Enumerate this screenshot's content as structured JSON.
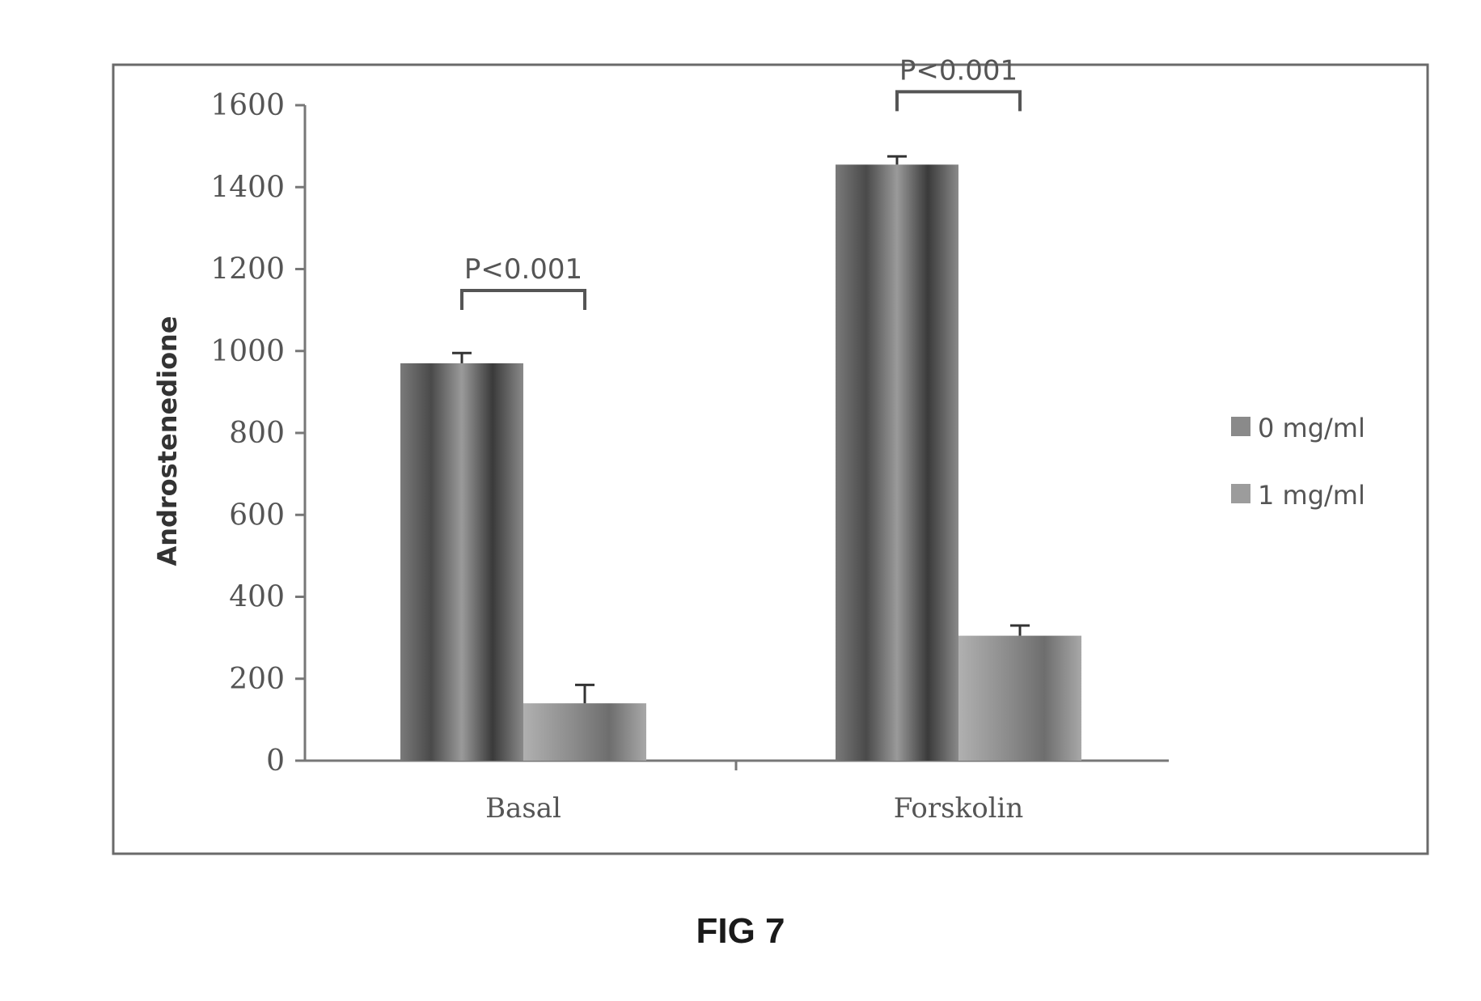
{
  "caption": "FIG 7",
  "chart_data": {
    "type": "bar",
    "title": "",
    "xlabel": "",
    "ylabel": "Androstenedione",
    "ylim": [
      0,
      1600
    ],
    "yticks": [
      0,
      200,
      400,
      600,
      800,
      1000,
      1200,
      1400,
      1600
    ],
    "categories": [
      "Basal",
      "Forskolin"
    ],
    "series": [
      {
        "name": "0 mg/ml",
        "values": [
          970,
          1455
        ],
        "errors": [
          25,
          20
        ],
        "color": "#8a8a8a"
      },
      {
        "name": "1 mg/ml",
        "values": [
          140,
          305
        ],
        "errors": [
          45,
          25
        ],
        "color": "#9c9c9c"
      }
    ],
    "legend_position": "right",
    "grid": false,
    "annotations": [
      {
        "text": "P<0.001",
        "category": "Basal"
      },
      {
        "text": "P<0.001",
        "category": "Forskolin"
      }
    ]
  }
}
